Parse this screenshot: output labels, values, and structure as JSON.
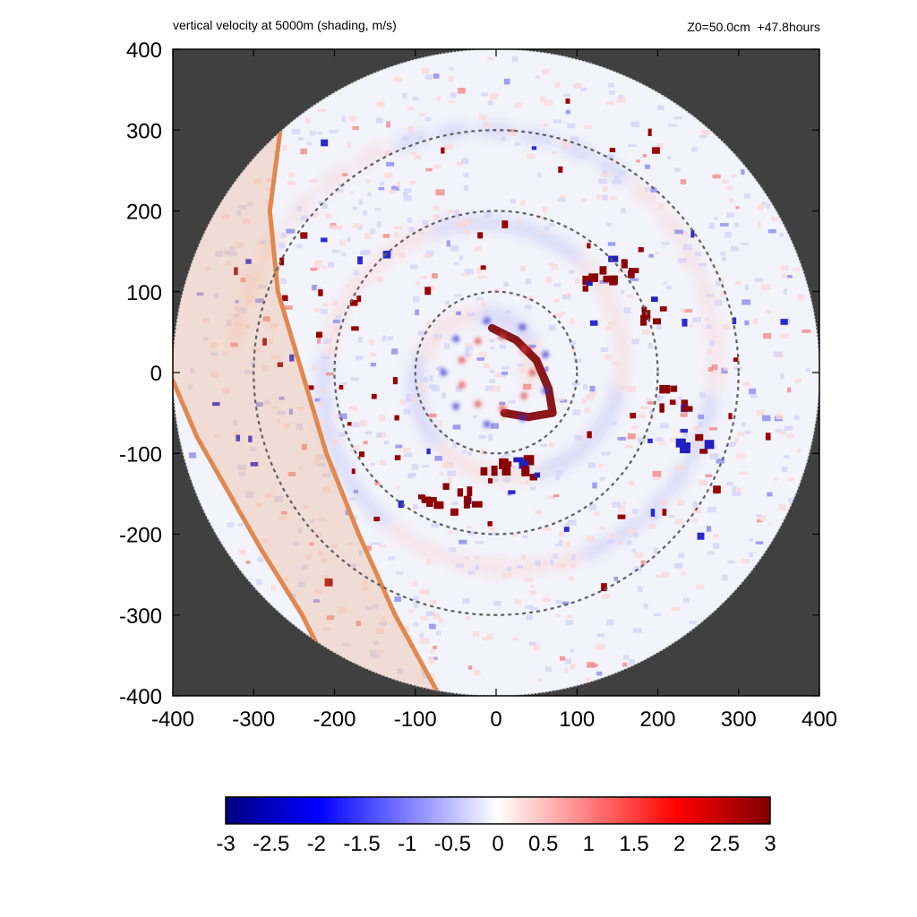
{
  "chart_data": {
    "type": "heatmap",
    "title": "vertical velocity at 5000m (shading, m/s)",
    "subtitle": "Z0=50.0cm  +47.8hours",
    "x_ticks": [
      -400,
      -300,
      -200,
      -100,
      0,
      100,
      200,
      300,
      400
    ],
    "y_ticks": [
      400,
      300,
      200,
      100,
      0,
      -100,
      -200,
      -300,
      -400
    ],
    "xlim": [
      -400,
      400
    ],
    "ylim": [
      -400,
      400
    ],
    "domain_radius": 400,
    "range_rings": [
      100,
      200,
      300
    ],
    "colorbar": {
      "min": -3,
      "max": 3,
      "ticks": [
        "-3",
        "-2.5",
        "-2",
        "-1.5",
        "-1",
        "-0.5",
        "0",
        "0.5",
        "1",
        "1.5",
        "2",
        "2.5",
        "3"
      ],
      "colors": [
        "#00007f",
        "#0000ff",
        "#ffffff",
        "#ff0000",
        "#7f0000"
      ]
    },
    "coastline_band": {
      "edge_1": [
        [
          -267,
          300
        ],
        [
          -280,
          200
        ],
        [
          -270,
          100
        ],
        [
          -240,
          0
        ],
        [
          -210,
          -100
        ],
        [
          -170,
          -200
        ],
        [
          -125,
          -300
        ],
        [
          -70,
          -400
        ]
      ],
      "edge_2": [
        [
          -400,
          -10
        ],
        [
          -370,
          -80
        ],
        [
          -330,
          -150
        ],
        [
          -290,
          -220
        ],
        [
          -240,
          -300
        ],
        [
          -190,
          -400
        ]
      ]
    },
    "features": {
      "eyewall_arc": [
        [
          -5,
          55
        ],
        [
          25,
          40
        ],
        [
          50,
          15
        ],
        [
          65,
          -20
        ],
        [
          70,
          -50
        ],
        [
          40,
          -55
        ],
        [
          10,
          -50
        ]
      ],
      "spiral_band_cells": [
        [
          195,
          80
        ],
        [
          215,
          -30
        ],
        [
          240,
          -80
        ],
        [
          150,
          130
        ],
        [
          120,
          120
        ],
        [
          -5,
          -120
        ],
        [
          30,
          -115
        ],
        [
          -80,
          -150
        ],
        [
          -30,
          -155
        ]
      ]
    }
  }
}
